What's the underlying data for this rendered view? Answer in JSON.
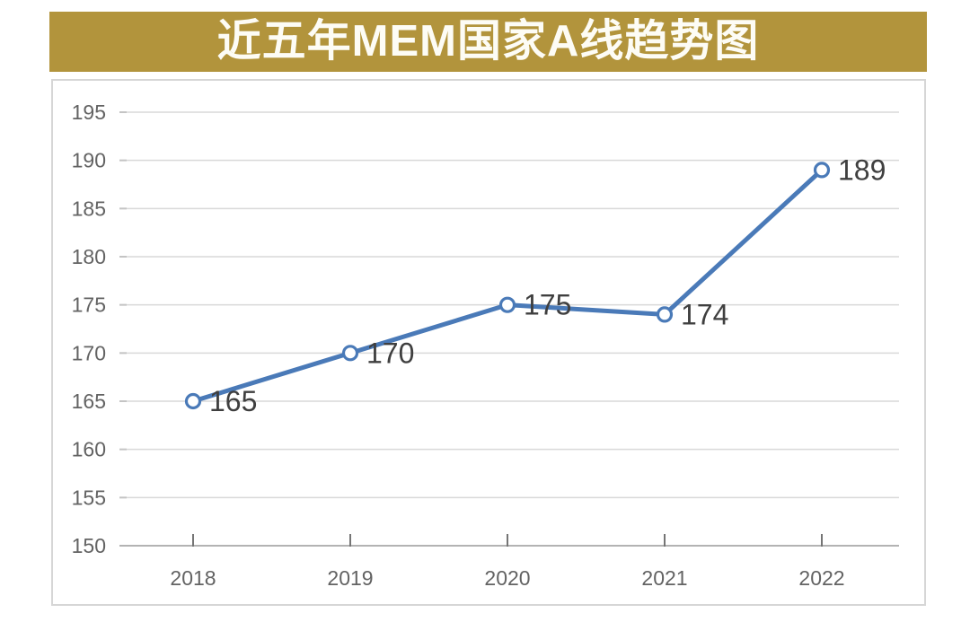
{
  "header": {
    "title": "近五年MEM国家A线趋势图",
    "background_color": "#b2943c",
    "text_color": "#fdfcf5"
  },
  "chart_data": {
    "type": "line",
    "title": "近五年MEM国家A线趋势图",
    "categories": [
      "2018",
      "2019",
      "2020",
      "2021",
      "2022"
    ],
    "values": [
      165,
      170,
      175,
      174,
      189
    ],
    "data_labels": [
      "165",
      "170",
      "175",
      "174",
      "189"
    ],
    "xlabel": "",
    "ylabel": "",
    "ylim": [
      150,
      195
    ],
    "y_ticks": [
      150,
      155,
      160,
      165,
      170,
      175,
      180,
      185,
      190,
      195
    ],
    "grid": true,
    "legend": "none",
    "styles": {
      "line_color": "#4a7ab8",
      "marker": "open-circle",
      "marker_fill": "#ffffff",
      "gridline_color": "#d9d9d9",
      "axis_line_color": "#b3b3b3",
      "tick_color": "#757575",
      "y_tick_color": "#c4c4c4",
      "axis_label_color": "#636363",
      "data_label_color": "#3f3f3f",
      "panel_border_color": "#d6d6d6",
      "page_background": "#ffffff"
    }
  }
}
